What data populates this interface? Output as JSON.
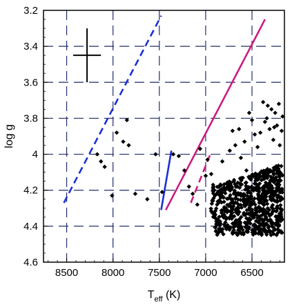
{
  "chart_data": {
    "type": "scatter",
    "xlabel": "T",
    "xlabel_sub": "eff",
    "xlabel_unit": " (K)",
    "ylabel": "log g",
    "xlim": [
      8750,
      6150
    ],
    "ylim": [
      3.2,
      4.6
    ],
    "x_reversed": true,
    "y_reversed": true,
    "x_ticks": [
      8500,
      8000,
      7500,
      7000,
      6500
    ],
    "x_tick_labels": [
      "8500",
      "8000",
      "7500",
      "7000",
      "6500"
    ],
    "y_ticks": [
      3.2,
      3.4,
      3.6,
      3.8,
      4.0,
      4.2,
      4.4,
      4.6
    ],
    "y_tick_labels": [
      "3.2",
      "3.4",
      "3.6",
      "3.8",
      "4",
      "4.2",
      "4.4",
      "4.6"
    ],
    "grid": true,
    "grid_style": "dashed",
    "error_bar": {
      "x": 8280,
      "y": 3.45,
      "x_err": 150,
      "y_err": 0.15
    },
    "lines": [
      {
        "style": "dashed",
        "color": "#1a2fd6",
        "points": [
          [
            8530,
            4.27
          ],
          [
            7480,
            3.23
          ]
        ]
      },
      {
        "style": "solid",
        "color": "#1a2fd6",
        "points": [
          [
            7480,
            4.31
          ],
          [
            7370,
            3.98
          ]
        ]
      },
      {
        "style": "solid",
        "color": "#cc1a80",
        "points": [
          [
            7430,
            4.31
          ],
          [
            6360,
            3.25
          ]
        ]
      },
      {
        "style": "dashed",
        "color": "#cc1a80",
        "points": [
          [
            7160,
            4.27
          ],
          [
            6950,
            4.0
          ]
        ]
      }
    ],
    "marker": {
      "shape": "diamond",
      "color": "#000000"
    },
    "points_sparse": [
      [
        8170,
        4.0
      ],
      [
        8130,
        4.04
      ],
      [
        8090,
        4.07
      ],
      [
        8010,
        4.23
      ],
      [
        7960,
        3.88
      ],
      [
        7890,
        3.93
      ],
      [
        7850,
        3.81
      ],
      [
        7830,
        3.95
      ],
      [
        7760,
        4.22
      ],
      [
        7630,
        4.25
      ],
      [
        7540,
        4.0
      ],
      [
        7470,
        4.21
      ],
      [
        7350,
        4.0
      ],
      [
        7290,
        4.01
      ],
      [
        7230,
        4.09
      ],
      [
        7180,
        4.18
      ],
      [
        7140,
        4.22
      ],
      [
        7090,
        4.28
      ],
      [
        7060,
        3.97
      ],
      [
        7000,
        4.12
      ],
      [
        6980,
        4.03
      ],
      [
        6940,
        4.11
      ],
      [
        6920,
        4.17
      ],
      [
        6880,
        4.22
      ],
      [
        6860,
        4.27
      ],
      [
        6820,
        4.04
      ],
      [
        6780,
        4.19
      ],
      [
        6740,
        3.98
      ],
      [
        6710,
        3.87
      ],
      [
        6680,
        3.95
      ],
      [
        6640,
        3.86
      ],
      [
        6620,
        4.02
      ],
      [
        6580,
        3.93
      ],
      [
        6560,
        4.09
      ],
      [
        6530,
        3.77
      ],
      [
        6500,
        3.81
      ],
      [
        6470,
        3.89
      ],
      [
        6440,
        3.96
      ],
      [
        6410,
        3.88
      ],
      [
        6380,
        3.71
      ],
      [
        6360,
        3.82
      ],
      [
        6330,
        3.73
      ],
      [
        6310,
        3.86
      ],
      [
        6290,
        3.75
      ],
      [
        6270,
        3.92
      ],
      [
        6250,
        3.77
      ],
      [
        6230,
        3.84
      ],
      [
        6210,
        3.72
      ],
      [
        6200,
        3.95
      ],
      [
        6180,
        3.87
      ],
      [
        6170,
        3.79
      ],
      [
        6340,
        3.8
      ],
      [
        6260,
        3.85
      ]
    ],
    "points_dense_cluster": {
      "x_range": [
        6950,
        6170
      ],
      "y_range": [
        4.05,
        4.45
      ],
      "count": 700,
      "description": "dense cloud of diamonds spanning the lower right region"
    }
  }
}
